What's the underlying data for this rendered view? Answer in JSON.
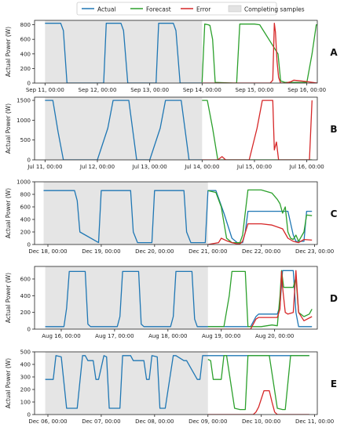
{
  "legend": {
    "items": [
      {
        "label": "Actual",
        "kind": "line",
        "color": "#1f77b4"
      },
      {
        "label": "Forecast",
        "kind": "line",
        "color": "#2ca02c"
      },
      {
        "label": "Error",
        "kind": "line",
        "color": "#d62728"
      },
      {
        "label": "Completing samples",
        "kind": "patch",
        "color": "#e3e3e3"
      }
    ]
  },
  "chart_data": [
    {
      "type": "line",
      "panel_label": "A",
      "ylabel": "Actual Power (W)",
      "xlim": [
        -0.2,
        5.2
      ],
      "ylim": [
        0,
        860
      ],
      "yticks": [
        0,
        200,
        400,
        600,
        800
      ],
      "xticks": [
        {
          "x": 0,
          "label": "Sep 11, 00:00"
        },
        {
          "x": 1,
          "label": "Sep 12, 00:00"
        },
        {
          "x": 2,
          "label": "Sep 13, 00:00"
        },
        {
          "x": 3,
          "label": "Sep 14, 00:00"
        },
        {
          "x": 4,
          "label": "Sep 15, 00:00"
        },
        {
          "x": 5,
          "label": "Sep 16, 00:00"
        }
      ],
      "shaded_region": {
        "label": "Completing samples",
        "x": [
          0,
          3
        ]
      },
      "series": [
        {
          "name": "Actual",
          "color": "#1f77b4",
          "x": [
            0,
            0.3,
            0.35,
            0.42,
            1,
            1.12,
            1.17,
            1.45,
            1.5,
            1.58,
            2,
            2.12,
            2.17,
            2.45,
            2.5,
            2.58,
            3
          ],
          "y": [
            820,
            820,
            720,
            0,
            0,
            0,
            820,
            820,
            720,
            0,
            0,
            0,
            820,
            820,
            720,
            0,
            0
          ]
        },
        {
          "name": "Forecast",
          "color": "#2ca02c",
          "x": [
            3,
            3.05,
            3.12,
            3.15,
            3.2,
            3.25,
            3.6,
            3.66,
            3.72,
            4,
            4.1,
            4.45,
            4.5,
            4.58,
            5,
            5.1,
            5.18,
            5.22
          ],
          "y": [
            10,
            810,
            800,
            790,
            600,
            10,
            0,
            0,
            810,
            810,
            800,
            400,
            30,
            10,
            10,
            400,
            800,
            800
          ]
        },
        {
          "name": "Error",
          "color": "#d62728",
          "x": [
            3,
            3.2,
            4.3,
            4.35,
            4.38,
            4.4,
            4.43,
            4.46,
            4.5,
            4.6,
            4.7,
            4.75,
            5,
            5.2
          ],
          "y": [
            0,
            0,
            0,
            40,
            820,
            700,
            300,
            80,
            0,
            0,
            20,
            40,
            20,
            0
          ]
        }
      ]
    },
    {
      "type": "line",
      "panel_label": "B",
      "ylabel": "Actual Power (W)",
      "xlim": [
        -0.2,
        5.2
      ],
      "ylim": [
        0,
        1580
      ],
      "yticks": [
        0,
        500,
        1000,
        1500
      ],
      "xticks": [
        {
          "x": 0,
          "label": "Jul 11, 00:00"
        },
        {
          "x": 1,
          "label": "Jul 12, 00:00"
        },
        {
          "x": 2,
          "label": "Jul 13, 00:00"
        },
        {
          "x": 3,
          "label": "Jul 14, 00:00"
        },
        {
          "x": 4,
          "label": "Jul 15, 00:00"
        },
        {
          "x": 5,
          "label": "Jul 16, 00:00"
        }
      ],
      "shaded_region": {
        "label": "Completing samples",
        "x": [
          0,
          3
        ]
      },
      "series": [
        {
          "name": "Actual",
          "color": "#1f77b4",
          "x": [
            0,
            0.15,
            0.25,
            0.35,
            0.45,
            1,
            1.2,
            1.3,
            1.5,
            1.6,
            1.75,
            2,
            2.2,
            2.3,
            2.5,
            2.6,
            2.75,
            3
          ],
          "y": [
            1500,
            1500,
            700,
            0,
            0,
            0,
            800,
            1500,
            1500,
            1500,
            0,
            0,
            800,
            1500,
            1500,
            1500,
            0,
            0
          ]
        },
        {
          "name": "Forecast",
          "color": "#2ca02c",
          "x": [
            3,
            3.1,
            3.2,
            3.3,
            3.6,
            4,
            4.4,
            4.8,
            5.1
          ],
          "y": [
            1500,
            1500,
            800,
            0,
            0,
            0,
            0,
            0,
            0
          ]
        },
        {
          "name": "Error",
          "color": "#d62728",
          "x": [
            3,
            3.2,
            3.3,
            3.38,
            3.45,
            3.5,
            3.9,
            4.05,
            4.15,
            4.35,
            4.38,
            4.42,
            4.46,
            4.5,
            4.6,
            5,
            5.05,
            5.1
          ],
          "y": [
            0,
            0,
            0,
            80,
            0,
            0,
            0,
            800,
            1500,
            1500,
            250,
            450,
            0,
            0,
            0,
            0,
            0,
            1500
          ]
        }
      ]
    },
    {
      "type": "line",
      "panel_label": "C",
      "ylabel": "Actual Power (W)",
      "xlim": [
        -0.25,
        5.05
      ],
      "ylim": [
        0,
        1000
      ],
      "yticks": [
        0,
        200,
        400,
        600,
        800,
        1000
      ],
      "xticks": [
        {
          "x": 0,
          "label": "Dec 18, 00:00"
        },
        {
          "x": 1,
          "label": "Dec 19, 00:00"
        },
        {
          "x": 2,
          "label": "Dec 20, 00:00"
        },
        {
          "x": 3,
          "label": "Dec 21, 00:00"
        },
        {
          "x": 4,
          "label": "Dec 22, 00:00"
        },
        {
          "x": 5,
          "label": "Dec 23, 00:00"
        }
      ],
      "shaded_region": {
        "label": "Completing samples",
        "x": [
          -0.08,
          3
        ]
      },
      "series": [
        {
          "name": "Actual",
          "color": "#1f77b4",
          "x": [
            -0.08,
            0.5,
            0.55,
            0.6,
            0.95,
            1,
            1.55,
            1.6,
            1.68,
            1.95,
            2,
            2.55,
            2.6,
            2.68,
            2.95,
            3,
            3.15,
            3.3,
            3.45,
            3.55,
            3.65,
            3.7,
            3.75,
            4,
            4.2,
            4.3,
            4.5,
            4.6,
            4.65,
            4.8,
            4.85,
            4.95
          ],
          "y": [
            860,
            860,
            700,
            200,
            30,
            860,
            860,
            200,
            30,
            30,
            860,
            860,
            200,
            30,
            30,
            860,
            860,
            500,
            100,
            30,
            30,
            200,
            530,
            530,
            530,
            530,
            530,
            150,
            50,
            50,
            530,
            530
          ]
        },
        {
          "name": "Forecast",
          "color": "#2ca02c",
          "x": [
            3,
            3.15,
            3.25,
            3.35,
            3.45,
            3.55,
            3.6,
            3.65,
            3.75,
            4,
            4.2,
            4.3,
            4.35,
            4.4,
            4.45,
            4.5,
            4.55,
            4.6,
            4.65,
            4.7,
            4.8,
            4.85,
            4.95
          ],
          "y": [
            860,
            830,
            600,
            100,
            30,
            30,
            30,
            150,
            870,
            870,
            820,
            720,
            650,
            500,
            600,
            200,
            100,
            80,
            150,
            50,
            200,
            470,
            460
          ]
        },
        {
          "name": "Error",
          "color": "#d62728",
          "x": [
            3,
            3.2,
            3.25,
            3.35,
            3.45,
            3.55,
            3.6,
            3.65,
            3.75,
            4,
            4.2,
            4.3,
            4.4,
            4.5,
            4.6,
            4.7,
            4.8,
            4.95
          ],
          "y": [
            0,
            30,
            100,
            60,
            30,
            10,
            10,
            50,
            330,
            330,
            310,
            280,
            250,
            100,
            50,
            30,
            80,
            70
          ]
        }
      ]
    },
    {
      "type": "line",
      "panel_label": "D",
      "ylabel": "Actual Power (W)",
      "xlim": [
        -0.25,
        5.05
      ],
      "ylim": [
        0,
        750
      ],
      "yticks": [
        0,
        200,
        400,
        600
      ],
      "xticks": [
        {
          "x": 0.25,
          "label": "Aug 16, 00:00"
        },
        {
          "x": 1.25,
          "label": "Aug 17, 00:00"
        },
        {
          "x": 2.25,
          "label": "Aug 18, 00:00"
        },
        {
          "x": 3.25,
          "label": "Aug 19, 00:00"
        },
        {
          "x": 4.25,
          "label": "Aug 20, 00:00"
        }
      ],
      "shaded_region": {
        "label": "Completing samples",
        "x": [
          -0.05,
          3
        ]
      },
      "series": [
        {
          "name": "Actual",
          "color": "#1f77b4",
          "x": [
            -0.05,
            0.3,
            0.35,
            0.4,
            0.7,
            0.75,
            0.8,
            1.3,
            1.35,
            1.4,
            1.7,
            1.75,
            1.8,
            2.3,
            2.35,
            2.4,
            2.7,
            2.75,
            2.8,
            3,
            3.4,
            3.6,
            3.8,
            3.9,
            3.95,
            4,
            4.3,
            4.35,
            4.4,
            4.6,
            4.65,
            4.7,
            4.8,
            4.95
          ],
          "y": [
            30,
            30,
            250,
            690,
            690,
            60,
            30,
            30,
            150,
            690,
            690,
            60,
            30,
            30,
            150,
            690,
            690,
            120,
            30,
            30,
            30,
            30,
            30,
            150,
            180,
            180,
            180,
            280,
            700,
            700,
            200,
            30,
            30,
            30
          ]
        },
        {
          "name": "Forecast",
          "color": "#2ca02c",
          "x": [
            3,
            3.3,
            3.4,
            3.45,
            3.5,
            3.55,
            3.6,
            3.7,
            3.75,
            3.9,
            4,
            4.2,
            4.3,
            4.35,
            4.38,
            4.42,
            4.45,
            4.5,
            4.6,
            4.65,
            4.7,
            4.8,
            4.9,
            4.95
          ],
          "y": [
            30,
            30,
            400,
            690,
            690,
            690,
            690,
            690,
            30,
            30,
            30,
            50,
            40,
            400,
            700,
            500,
            500,
            500,
            500,
            620,
            200,
            150,
            180,
            240
          ]
        },
        {
          "name": "Error",
          "color": "#d62728",
          "x": [
            3,
            3.4,
            3.5,
            3.8,
            3.9,
            3.95,
            4,
            4.3,
            4.35,
            4.38,
            4.4,
            4.45,
            4.5,
            4.6,
            4.65,
            4.7,
            4.8,
            4.95
          ],
          "y": [
            0,
            0,
            0,
            0,
            120,
            140,
            140,
            140,
            240,
            690,
            500,
            200,
            180,
            200,
            700,
            200,
            100,
            150
          ]
        }
      ]
    },
    {
      "type": "line",
      "panel_label": "E",
      "ylabel": "Actual Power (W)",
      "xlim": [
        -0.25,
        5.05
      ],
      "ylim": [
        0,
        500
      ],
      "yticks": [
        0,
        100,
        200,
        300,
        400,
        500
      ],
      "xticks": [
        {
          "x": 0,
          "label": "Dec 06, 00:00"
        },
        {
          "x": 1,
          "label": "Dec 07, 00:00"
        },
        {
          "x": 2,
          "label": "Dec 08, 00:00"
        },
        {
          "x": 3,
          "label": "Dec 09, 00:00"
        },
        {
          "x": 4,
          "label": "Dec 10, 00:00"
        },
        {
          "x": 5,
          "label": "Dec 11, 00:00"
        }
      ],
      "shaded_region": {
        "label": "Completing samples",
        "x": [
          -0.05,
          3
        ]
      },
      "series": [
        {
          "name": "Actual",
          "color": "#1f77b4",
          "x": [
            -0.05,
            0.1,
            0.15,
            0.25,
            0.35,
            0.4,
            0.55,
            0.65,
            0.7,
            0.75,
            0.85,
            0.9,
            0.95,
            1.05,
            1.1,
            1.15,
            1.2,
            1.35,
            1.4,
            1.55,
            1.6,
            1.8,
            1.85,
            1.9,
            1.95,
            2.05,
            2.1,
            2.15,
            2.2,
            2.35,
            2.4,
            2.55,
            2.6,
            2.8,
            2.85,
            2.9,
            2.95,
            3,
            3.1,
            3.15,
            3.25,
            3.35,
            3.4,
            3.55,
            3.65,
            3.7,
            3.75,
            4.1,
            4.15,
            4.25,
            4.35,
            4.4,
            4.55,
            4.65,
            4.7,
            4.9
          ],
          "y": [
            280,
            280,
            470,
            460,
            50,
            50,
            50,
            470,
            470,
            430,
            430,
            280,
            280,
            470,
            460,
            50,
            50,
            50,
            470,
            470,
            430,
            430,
            280,
            280,
            470,
            460,
            50,
            50,
            50,
            470,
            470,
            430,
            430,
            280,
            280,
            470,
            470,
            470,
            470,
            470,
            470,
            470,
            470,
            470,
            470,
            470,
            470,
            470,
            470,
            470,
            470,
            470,
            470,
            470,
            470,
            470
          ]
        },
        {
          "name": "Forecast",
          "color": "#2ca02c",
          "x": [
            3,
            3.05,
            3.1,
            3.25,
            3.3,
            3.35,
            3.5,
            3.6,
            3.7,
            3.75,
            3.9,
            4.1,
            4.15,
            4.3,
            4.4,
            4.45,
            4.55,
            4.65,
            4.7,
            4.9
          ],
          "y": [
            440,
            430,
            280,
            280,
            470,
            470,
            50,
            40,
            40,
            470,
            470,
            470,
            470,
            50,
            40,
            40,
            470,
            470,
            470,
            470
          ]
        },
        {
          "name": "Error",
          "color": "#d62728",
          "x": [
            3,
            3.5,
            3.6,
            3.75,
            3.85,
            3.9,
            3.95,
            4.05,
            4.1,
            4.15,
            4.2,
            4.25,
            4.3,
            4.35,
            4.6,
            4.65,
            4.9
          ],
          "y": [
            0,
            0,
            0,
            0,
            0,
            20,
            60,
            190,
            190,
            190,
            100,
            20,
            0,
            0,
            0,
            0,
            0
          ]
        }
      ]
    }
  ]
}
